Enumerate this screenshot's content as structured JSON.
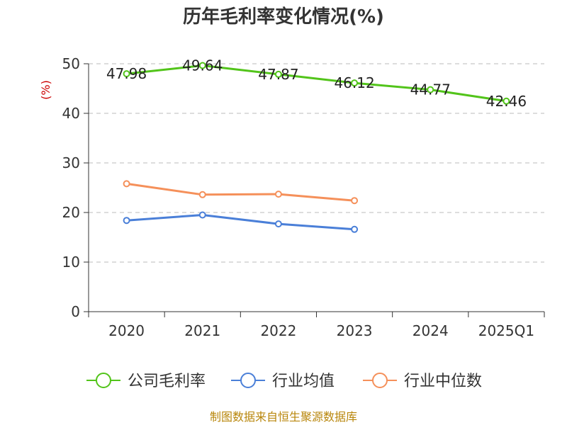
{
  "chart_data": {
    "type": "line",
    "title": "历年毛利率变化情况(%)",
    "ylabel": "(%)",
    "xlabel": "",
    "categories": [
      "2020",
      "2021",
      "2022",
      "2023",
      "2024",
      "2025Q1"
    ],
    "ylim": [
      0,
      50
    ],
    "yticks": [
      0,
      10,
      20,
      30,
      40,
      50
    ],
    "grid": true,
    "legend_position": "bottom",
    "series": [
      {
        "name": "公司毛利率",
        "color": "#52c41a",
        "values": [
          47.98,
          49.64,
          47.87,
          46.12,
          44.77,
          42.46
        ],
        "labels": [
          "47.98",
          "49.64",
          "47.87",
          "46.12",
          "44.77",
          "42.46"
        ]
      },
      {
        "name": "行业均值",
        "color": "#4a7fd8",
        "values": [
          18.4,
          19.5,
          17.7,
          16.6,
          null,
          null
        ]
      },
      {
        "name": "行业中位数",
        "color": "#f5905a",
        "values": [
          25.8,
          23.6,
          23.7,
          22.4,
          null,
          null
        ]
      }
    ]
  },
  "source": "制图数据来自恒生聚源数据库"
}
